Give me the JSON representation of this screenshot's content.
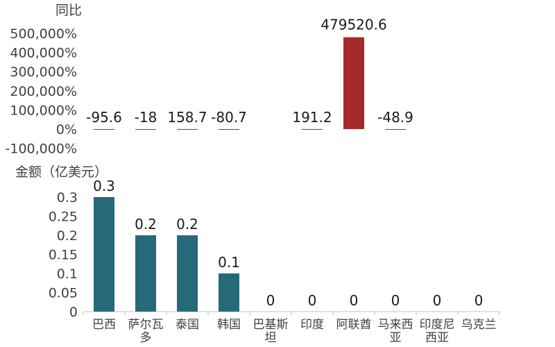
{
  "chart_data": [
    {
      "type": "bar",
      "ylabel": "同比",
      "unit": "%",
      "categories": [
        "巴西",
        "萨尔瓦多",
        "泰国",
        "韩国",
        "巴基斯坦",
        "印度",
        "阿联酋",
        "马来西亚",
        "印度尼西亚",
        "乌克兰"
      ],
      "series": [
        {
          "values": [
            -95.6,
            -18,
            158.7,
            -80.7,
            null,
            191.2,
            479520.6,
            -48.9,
            null,
            null
          ],
          "labels": [
            "-95.6",
            "-18",
            "158.7",
            "-80.7",
            "",
            "191.2",
            "479520.6",
            "-48.9",
            "",
            ""
          ]
        }
      ],
      "yticks": [
        -100000,
        0,
        100000,
        200000,
        300000,
        400000,
        500000
      ],
      "ytick_labels": [
        "-100,000%",
        "0%",
        "100,000%",
        "200,000%",
        "300,000%",
        "400,000%",
        "500,000%"
      ],
      "ylim": [
        -100000,
        500000
      ],
      "grid": false,
      "colors": {
        "bar": "#a52a2a"
      }
    },
    {
      "type": "bar",
      "ylabel": "金额（亿美元）",
      "categories": [
        "巴西",
        "萨尔瓦多",
        "泰国",
        "韩国",
        "巴基斯坦",
        "印度",
        "阿联酋",
        "马来西亚",
        "印度尼西亚",
        "乌克兰"
      ],
      "category_lines": [
        [
          "巴西"
        ],
        [
          "萨尔瓦",
          "多"
        ],
        [
          "泰国"
        ],
        [
          "韩国"
        ],
        [
          "巴基斯",
          "坦"
        ],
        [
          "印度"
        ],
        [
          "阿联酋"
        ],
        [
          "马来西",
          "亚"
        ],
        [
          "印度尼",
          "西亚"
        ],
        [
          "乌克兰"
        ]
      ],
      "series": [
        {
          "values": [
            0.3,
            0.2,
            0.2,
            0.1,
            0,
            0,
            0,
            0,
            0,
            0
          ],
          "labels": [
            "0.3",
            "0.2",
            "0.2",
            "0.1",
            "0",
            "0",
            "0",
            "0",
            "0",
            "0"
          ]
        }
      ],
      "yticks": [
        0,
        0.05,
        0.1,
        0.15,
        0.2,
        0.25,
        0.3
      ],
      "ytick_labels": [
        "0",
        "0.05",
        "0.1",
        "0.15",
        "0.2",
        "0.25",
        "0.3"
      ],
      "ylim": [
        0,
        0.3
      ],
      "grid": false,
      "colors": {
        "bar": "#266a7a"
      }
    }
  ]
}
